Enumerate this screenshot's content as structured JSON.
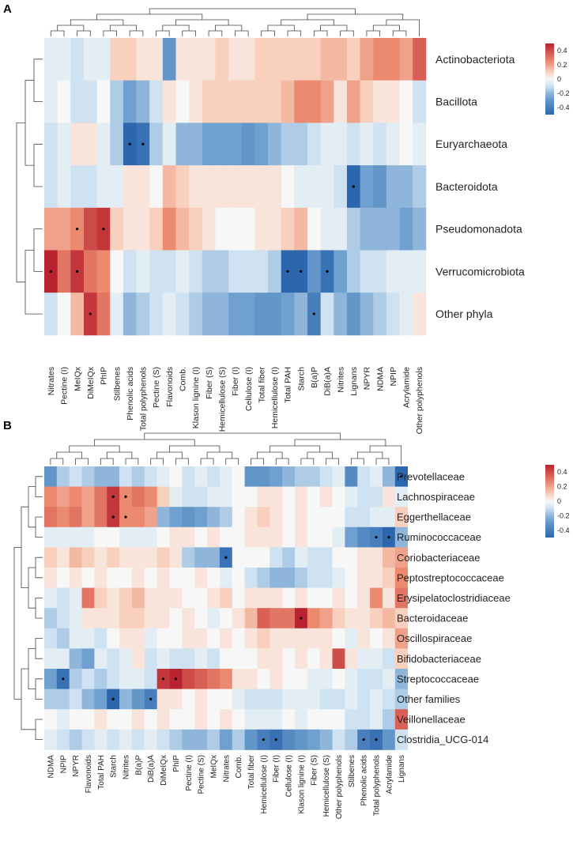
{
  "colors": {
    "strong_negative": "#2c67ad",
    "negative": "#6fa0cf",
    "light_negative": "#cfe2f1",
    "neutral": "#f7f7f7",
    "light_positive": "#f8d0bd",
    "positive": "#ec8a70",
    "strong_positive": "#b9222f"
  },
  "chart_data": [
    {
      "type": "heatmap",
      "panel_label": "A",
      "title": "",
      "columns": [
        "Nitrates",
        "Pectine (I)",
        "MeIQx",
        "DiMeIQx",
        "PhIP",
        "Stilbenes",
        "Phenolic acids",
        "Total polyphenols",
        "Pectine (S)",
        "Flavonoids",
        "Comb.",
        "Klason lignine (I)",
        "Fiber (S)",
        "Hemicellulose (S)",
        "Fiber (I)",
        "Cellulose (I)",
        "Total fiber",
        "Hemicellulose (I)",
        "Total PAH",
        "Starch",
        "B(a)P",
        "DiB(a)A",
        "Nitrites",
        "Lignans",
        "NPYR",
        "NDMA",
        "NPIP",
        "Acrylamide",
        "Other polyphenols"
      ],
      "rows": [
        "Actinobacteriota",
        "Bacillota",
        "Euryarchaeota",
        "Bacteroidota",
        "Pseudomonadota",
        "Verrucomicrobiota",
        "Other phyla"
      ],
      "values": [
        [
          -0.05,
          -0.05,
          -0.1,
          -0.05,
          -0.05,
          0.1,
          0.1,
          0.05,
          0.05,
          -0.3,
          0.05,
          0.05,
          0.05,
          0.1,
          0.05,
          0.05,
          0.1,
          0.1,
          0.1,
          0.1,
          0.1,
          0.15,
          0.15,
          0.1,
          0.2,
          0.25,
          0.25,
          0.2,
          0.35
        ],
        [
          -0.05,
          0.0,
          -0.1,
          -0.1,
          0.0,
          -0.15,
          -0.25,
          -0.2,
          -0.1,
          0.05,
          0.0,
          0.05,
          0.1,
          0.1,
          0.1,
          0.1,
          0.1,
          0.1,
          0.15,
          0.25,
          0.25,
          0.2,
          0.05,
          0.2,
          0.1,
          0.05,
          0.05,
          0.0,
          -0.1
        ],
        [
          -0.1,
          -0.05,
          0.05,
          0.05,
          -0.05,
          -0.15,
          -0.5,
          -0.45,
          -0.15,
          -0.05,
          -0.2,
          -0.2,
          -0.25,
          -0.25,
          -0.25,
          -0.3,
          -0.25,
          -0.2,
          -0.15,
          -0.15,
          -0.1,
          -0.05,
          -0.05,
          -0.1,
          -0.05,
          -0.1,
          -0.05,
          0.0,
          -0.05
        ],
        [
          -0.1,
          -0.05,
          -0.1,
          -0.1,
          -0.05,
          -0.05,
          0.05,
          0.05,
          0.0,
          0.15,
          0.1,
          0.05,
          0.05,
          0.05,
          0.05,
          0.05,
          0.05,
          0.05,
          0.0,
          -0.05,
          -0.05,
          -0.05,
          -0.1,
          -0.5,
          -0.25,
          -0.3,
          -0.2,
          -0.2,
          -0.15
        ],
        [
          0.2,
          0.2,
          0.25,
          0.4,
          0.45,
          0.1,
          0.05,
          0.05,
          0.1,
          0.25,
          0.15,
          0.1,
          0.05,
          0.0,
          0.0,
          0.0,
          0.05,
          0.05,
          0.1,
          0.15,
          0.0,
          -0.05,
          -0.05,
          -0.15,
          -0.2,
          -0.2,
          -0.2,
          -0.25,
          -0.2
        ],
        [
          0.5,
          0.3,
          0.45,
          0.3,
          0.25,
          0.0,
          -0.1,
          -0.05,
          -0.1,
          -0.1,
          -0.05,
          -0.1,
          -0.15,
          -0.15,
          -0.1,
          -0.1,
          -0.1,
          -0.15,
          -0.5,
          -0.5,
          -0.3,
          -0.45,
          -0.25,
          -0.15,
          -0.1,
          -0.1,
          -0.05,
          -0.05,
          -0.05
        ],
        [
          -0.1,
          0.0,
          0.15,
          0.45,
          0.3,
          -0.05,
          -0.2,
          -0.15,
          -0.1,
          -0.05,
          -0.1,
          -0.15,
          -0.2,
          -0.2,
          -0.25,
          -0.25,
          -0.3,
          -0.3,
          -0.25,
          -0.2,
          -0.4,
          -0.1,
          -0.2,
          -0.3,
          -0.2,
          -0.15,
          -0.1,
          -0.05,
          0.05
        ]
      ],
      "significant": [
        [
          2,
          6
        ],
        [
          2,
          7
        ],
        [
          3,
          23
        ],
        [
          4,
          2
        ],
        [
          4,
          4
        ],
        [
          5,
          0
        ],
        [
          5,
          2
        ],
        [
          5,
          18
        ],
        [
          5,
          19
        ],
        [
          5,
          21
        ],
        [
          6,
          3
        ],
        [
          6,
          20
        ]
      ],
      "legend": {
        "ticks": [
          "0.4",
          "0.2",
          "0",
          "-0.2",
          "-0.4"
        ],
        "range": [
          -0.5,
          0.5
        ],
        "position": "top-right"
      }
    },
    {
      "type": "heatmap",
      "panel_label": "B",
      "title": "",
      "columns": [
        "NDMA",
        "NPIP",
        "NPYR",
        "Flavonoids",
        "Total PAH",
        "Starch",
        "Nitrites",
        "B(a)P",
        "DiB(a)A",
        "DiMeIQx",
        "PhIP",
        "Pectine (I)",
        "Pectine (S)",
        "MeIQx",
        "Nitrates",
        "Comb.",
        "Total fiber",
        "Hemicellulose (I)",
        "Fiber (I)",
        "Cellulose (I)",
        "Klason lignine (I)",
        "Fiber (S)",
        "Hemicellulose (S)",
        "Other polyphenols",
        "Stilbenes",
        "Phenolic acids",
        "Total polyphenols",
        "Acrylamide",
        "Lignans"
      ],
      "rows": [
        "Prevotellaceae",
        "Lachnospiraceae",
        "Eggerthellaceae",
        "Ruminococcaceae",
        "Coriobacteriaceae",
        "Peptostreptococcaceae",
        "Erysipelatoclostridiaceae",
        "Bacteroidaceae",
        "Oscillospiraceae",
        "Bifidobacteriaceae",
        "Streptococcaceae",
        "Other families",
        "Veillonellaceae",
        "Clostridia_UCG-014"
      ],
      "values": [
        [
          -0.3,
          -0.15,
          -0.1,
          -0.15,
          -0.2,
          -0.2,
          -0.1,
          -0.15,
          -0.1,
          -0.05,
          0.0,
          -0.1,
          -0.05,
          -0.1,
          -0.05,
          0.0,
          -0.3,
          -0.3,
          -0.25,
          -0.2,
          -0.15,
          -0.15,
          -0.1,
          -0.05,
          -0.35,
          -0.1,
          -0.05,
          -0.2,
          -0.5
        ],
        [
          0.25,
          0.2,
          0.25,
          0.2,
          0.3,
          0.45,
          0.25,
          0.3,
          0.25,
          0.1,
          -0.05,
          -0.1,
          -0.1,
          -0.05,
          -0.05,
          0.0,
          0.0,
          0.05,
          0.05,
          0.0,
          0.05,
          0.0,
          0.05,
          0.0,
          -0.05,
          -0.1,
          -0.1,
          0.05,
          -0.05
        ],
        [
          0.3,
          0.25,
          0.3,
          0.2,
          0.3,
          0.45,
          0.25,
          0.25,
          0.2,
          -0.2,
          -0.25,
          -0.3,
          -0.25,
          -0.2,
          -0.15,
          0.0,
          0.05,
          0.1,
          0.05,
          0.0,
          0.05,
          0.0,
          0.0,
          0.0,
          -0.1,
          -0.1,
          -0.05,
          -0.05,
          0.1
        ],
        [
          -0.05,
          -0.05,
          -0.05,
          -0.05,
          0.0,
          0.0,
          -0.05,
          -0.05,
          -0.05,
          0.0,
          0.05,
          0.05,
          0.0,
          0.05,
          0.0,
          0.0,
          0.05,
          0.05,
          0.05,
          0.0,
          0.05,
          0.0,
          0.0,
          -0.05,
          -0.25,
          -0.35,
          -0.4,
          -0.5,
          -0.2
        ],
        [
          0.1,
          0.05,
          0.15,
          0.1,
          0.05,
          0.1,
          0.05,
          0.05,
          0.05,
          0.1,
          0.05,
          -0.15,
          -0.2,
          -0.2,
          -0.45,
          0.0,
          0.0,
          0.0,
          -0.1,
          -0.15,
          -0.05,
          -0.1,
          -0.1,
          0.0,
          0.0,
          0.05,
          0.05,
          0.15,
          0.2
        ],
        [
          0.05,
          0.0,
          0.05,
          0.0,
          0.05,
          0.0,
          0.0,
          0.05,
          0.0,
          0.05,
          0.0,
          0.0,
          0.05,
          0.0,
          -0.05,
          0.0,
          -0.1,
          -0.15,
          -0.2,
          -0.2,
          -0.15,
          -0.1,
          -0.1,
          -0.05,
          0.0,
          0.05,
          0.05,
          0.1,
          0.25
        ],
        [
          -0.05,
          -0.1,
          -0.05,
          0.3,
          0.1,
          0.05,
          0.1,
          0.15,
          0.05,
          0.05,
          0.05,
          0.0,
          0.0,
          0.05,
          0.1,
          0.0,
          0.05,
          0.05,
          0.05,
          0.0,
          0.05,
          0.0,
          0.0,
          0.05,
          0.0,
          0.05,
          0.25,
          0.05,
          0.3
        ],
        [
          -0.15,
          -0.1,
          -0.05,
          0.05,
          0.05,
          0.05,
          0.1,
          0.1,
          0.05,
          0.05,
          0.0,
          0.05,
          0.0,
          -0.05,
          0.0,
          0.05,
          0.15,
          0.35,
          0.3,
          0.3,
          0.55,
          0.25,
          0.2,
          0.1,
          0.05,
          0.05,
          0.1,
          0.15,
          0.1
        ],
        [
          -0.1,
          -0.15,
          -0.05,
          -0.05,
          -0.1,
          0.0,
          0.05,
          0.05,
          -0.05,
          0.0,
          0.0,
          0.05,
          0.05,
          0.0,
          0.05,
          0.0,
          0.05,
          0.1,
          0.05,
          0.05,
          0.05,
          0.05,
          0.05,
          0.0,
          -0.05,
          0.05,
          0.0,
          0.05,
          0.2
        ],
        [
          -0.05,
          -0.05,
          -0.2,
          -0.25,
          -0.05,
          -0.1,
          -0.05,
          0.05,
          -0.1,
          -0.05,
          -0.1,
          -0.1,
          -0.05,
          -0.1,
          0.0,
          0.0,
          0.0,
          0.05,
          0.05,
          0.0,
          0.05,
          0.0,
          0.05,
          0.4,
          0.05,
          -0.05,
          -0.05,
          -0.1,
          0.1
        ],
        [
          -0.25,
          -0.45,
          -0.15,
          -0.1,
          -0.15,
          -0.1,
          -0.05,
          -0.05,
          -0.1,
          0.45,
          0.5,
          0.4,
          0.35,
          0.3,
          0.25,
          0.05,
          0.05,
          0.0,
          0.05,
          0.0,
          0.0,
          -0.05,
          -0.05,
          0.0,
          -0.05,
          -0.1,
          -0.1,
          -0.05,
          -0.2
        ],
        [
          -0.15,
          -0.15,
          -0.1,
          -0.2,
          -0.25,
          -0.5,
          -0.2,
          -0.3,
          -0.4,
          0.05,
          0.05,
          0.0,
          0.05,
          0.0,
          0.0,
          -0.05,
          -0.1,
          -0.1,
          -0.1,
          -0.05,
          -0.05,
          -0.05,
          -0.1,
          -0.1,
          -0.05,
          -0.1,
          -0.05,
          -0.1,
          -0.15
        ],
        [
          0.0,
          -0.05,
          0.0,
          0.0,
          0.05,
          0.0,
          0.0,
          0.05,
          0.0,
          0.05,
          0.0,
          0.0,
          0.05,
          0.0,
          0.05,
          0.0,
          -0.05,
          -0.05,
          -0.05,
          0.0,
          -0.05,
          0.0,
          0.0,
          0.0,
          -0.1,
          -0.1,
          -0.05,
          -0.15,
          0.35
        ],
        [
          -0.05,
          -0.1,
          -0.15,
          -0.1,
          -0.05,
          -0.1,
          -0.05,
          -0.1,
          -0.05,
          -0.1,
          -0.15,
          -0.2,
          -0.2,
          -0.15,
          -0.25,
          -0.15,
          -0.3,
          -0.4,
          -0.45,
          -0.35,
          -0.3,
          -0.25,
          -0.2,
          -0.1,
          -0.15,
          -0.4,
          -0.45,
          -0.3,
          -0.1
        ]
      ],
      "significant": [
        [
          0,
          28
        ],
        [
          1,
          5
        ],
        [
          1,
          6
        ],
        [
          2,
          5
        ],
        [
          2,
          6
        ],
        [
          3,
          26
        ],
        [
          3,
          27
        ],
        [
          4,
          14
        ],
        [
          7,
          20
        ],
        [
          10,
          1
        ],
        [
          10,
          9
        ],
        [
          10,
          10
        ],
        [
          11,
          5
        ],
        [
          11,
          8
        ],
        [
          13,
          17
        ],
        [
          13,
          18
        ],
        [
          13,
          25
        ],
        [
          13,
          26
        ]
      ],
      "legend": {
        "ticks": [
          "0.4",
          "0.2",
          "0",
          "-0.2",
          "-0.4"
        ],
        "range": [
          -0.5,
          0.5
        ],
        "position": "top-right"
      }
    }
  ]
}
